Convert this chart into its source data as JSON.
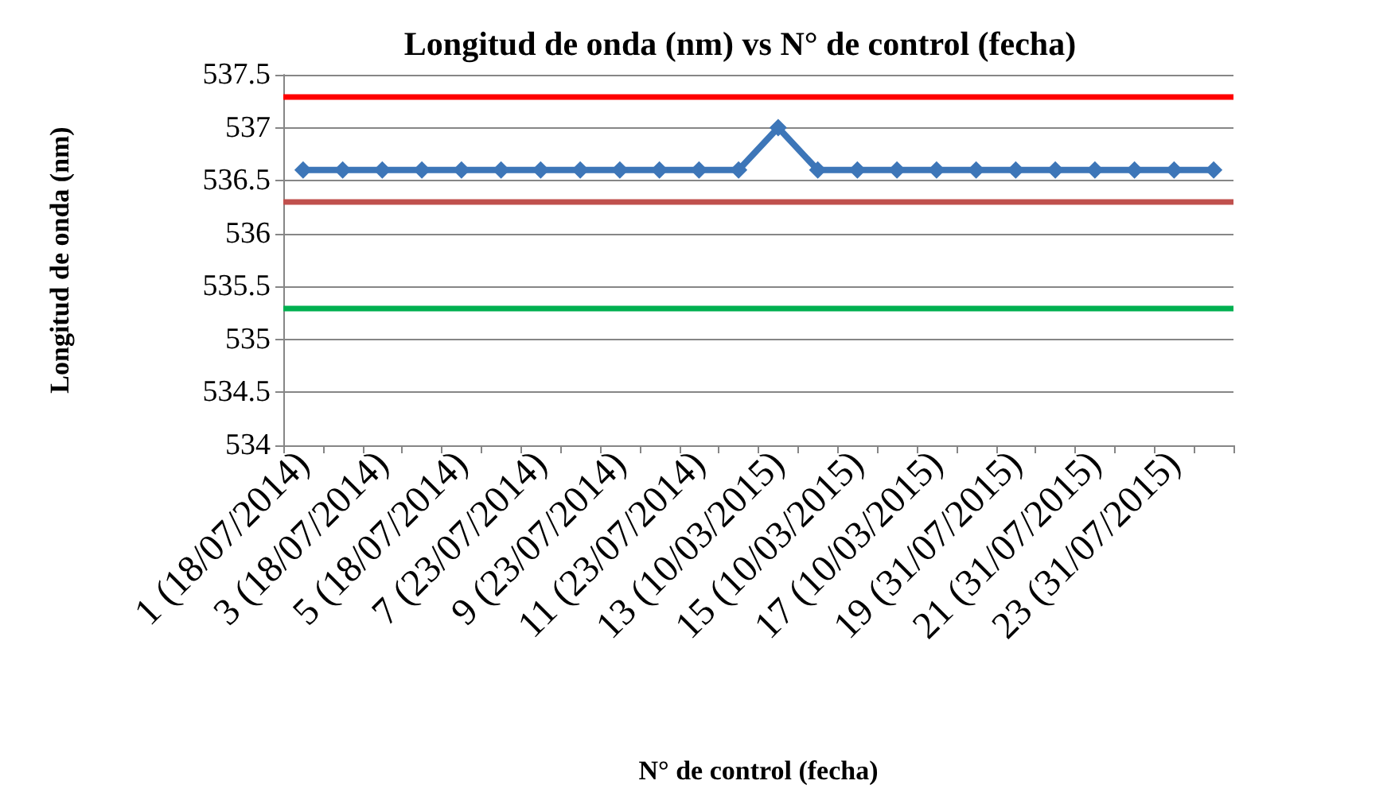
{
  "chart_data": {
    "type": "line",
    "title": "Longitud de onda (nm) vs N° de control (fecha)",
    "xlabel": "N° de control (fecha)",
    "ylabel": "Longitud de onda (nm)",
    "categories": [
      "1 (18/07/2014)",
      null,
      "3 (18/07/2014)",
      null,
      "5 (18/07/2014)",
      null,
      "7 (23/07/2014)",
      null,
      "9 (23/07/2014)",
      null,
      "11 (23/07/2014)",
      null,
      "13 (10/03/2015)",
      null,
      "15 (10/03/2015)",
      null,
      "17 (10/03/2015)",
      null,
      "19 (31/07/2015)",
      null,
      "21 (31/07/2015)",
      null,
      "23 (31/07/2015)",
      null
    ],
    "series": [
      {
        "color": "#3d76b8",
        "values": [
          536.6,
          536.6,
          536.6,
          536.6,
          536.6,
          536.6,
          536.6,
          536.6,
          536.6,
          536.6,
          536.6,
          536.6,
          537.0,
          536.6,
          536.6,
          536.6,
          536.6,
          536.6,
          536.6,
          536.6,
          536.6,
          536.6,
          536.6,
          536.6
        ]
      }
    ],
    "ref_lines": [
      {
        "axis": "y",
        "value": 537.3,
        "color": "#ff0000"
      },
      {
        "axis": "y",
        "value": 536.3,
        "color": "#c0504d"
      },
      {
        "axis": "y",
        "value": 535.3,
        "color": "#00b050"
      }
    ],
    "ylim": [
      534,
      537.5
    ],
    "yticks": [
      534,
      534.5,
      535,
      535.5,
      536,
      536.5,
      537,
      537.5
    ],
    "grid": "y",
    "marker": "diamond"
  }
}
